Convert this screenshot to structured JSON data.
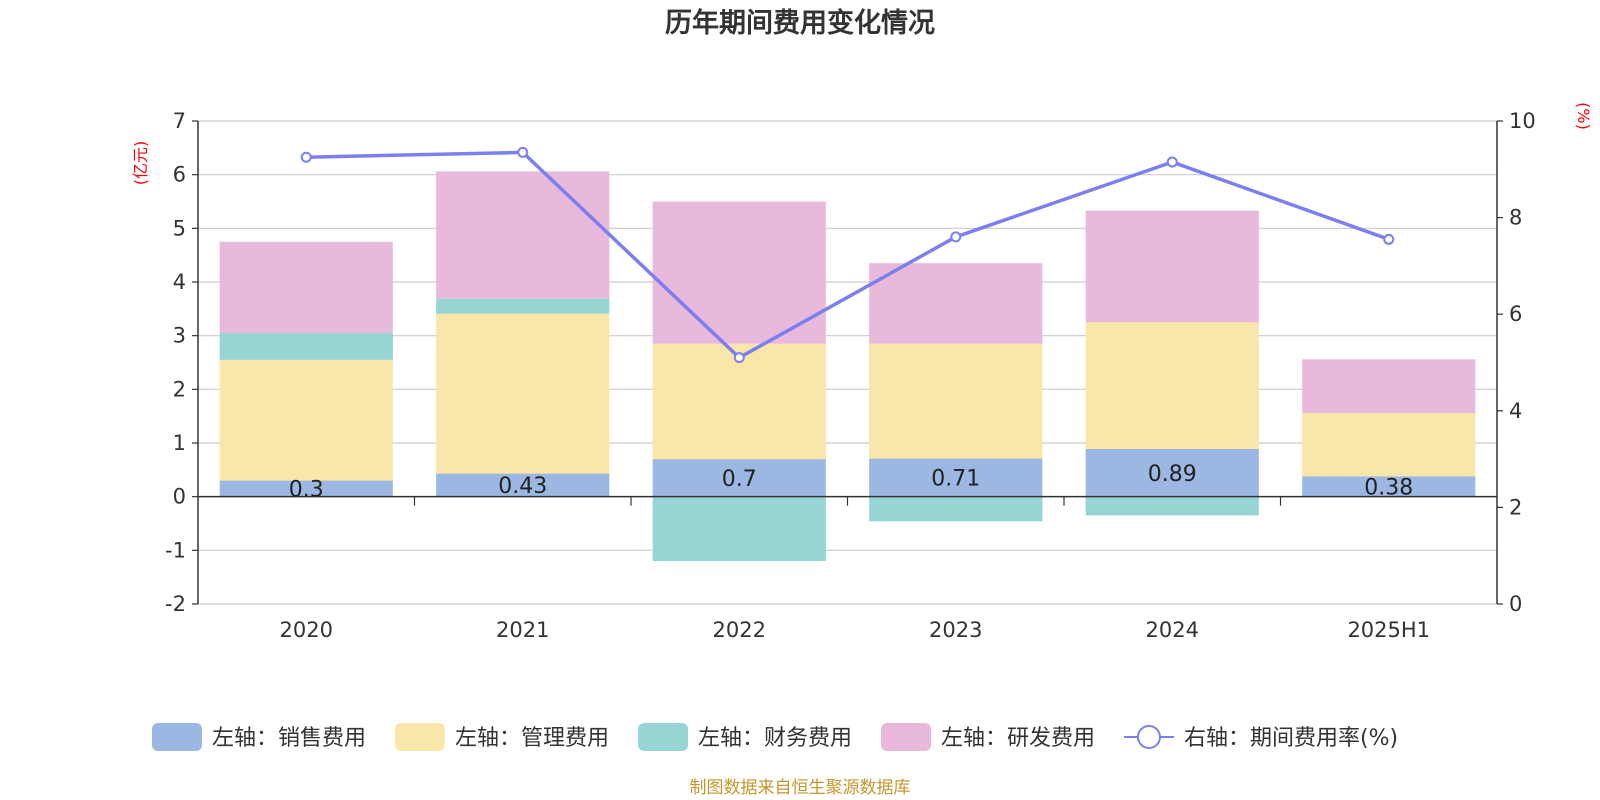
{
  "chart_data": {
    "type": "bar",
    "title": "历年期间费用变化情况",
    "categories": [
      "2020",
      "2021",
      "2022",
      "2023",
      "2024",
      "2025H1"
    ],
    "stacked": true,
    "left_axis": {
      "unit": "(亿元)",
      "ylim": [
        -2,
        7
      ],
      "ticks": [
        -2,
        -1,
        0,
        1,
        2,
        3,
        4,
        5,
        6,
        7
      ]
    },
    "right_axis": {
      "unit": "(%)",
      "ylim": [
        0,
        10
      ],
      "ticks": [
        0,
        2,
        4,
        6,
        8,
        10
      ]
    },
    "series": [
      {
        "name": "左轴：销售费用",
        "axis": "left",
        "type": "bar",
        "color": "#9bb7e2",
        "values": [
          0.3,
          0.43,
          0.7,
          0.71,
          0.89,
          0.38
        ],
        "show_labels": true
      },
      {
        "name": "左轴：管理费用",
        "axis": "left",
        "type": "bar",
        "color": "#f8e7a8",
        "values": [
          2.25,
          2.98,
          2.15,
          2.14,
          2.36,
          1.18
        ]
      },
      {
        "name": "左轴：财务费用",
        "axis": "left",
        "type": "bar",
        "color": "#97d4d4",
        "values": [
          0.5,
          0.28,
          -1.2,
          -0.46,
          -0.35,
          0
        ]
      },
      {
        "name": "左轴：研发费用",
        "axis": "left",
        "type": "bar",
        "color": "#e8b9da",
        "values": [
          1.7,
          2.37,
          2.65,
          1.5,
          2.08,
          1.0
        ]
      },
      {
        "name": "右轴：期间费用率(%)",
        "axis": "right",
        "type": "line",
        "color": "#7b7fef",
        "values": [
          9.25,
          9.35,
          5.1,
          7.6,
          9.15,
          7.55
        ]
      }
    ],
    "grid": true,
    "legend_position": "bottom"
  },
  "footer": {
    "source": "制图数据来自恒生聚源数据库"
  }
}
